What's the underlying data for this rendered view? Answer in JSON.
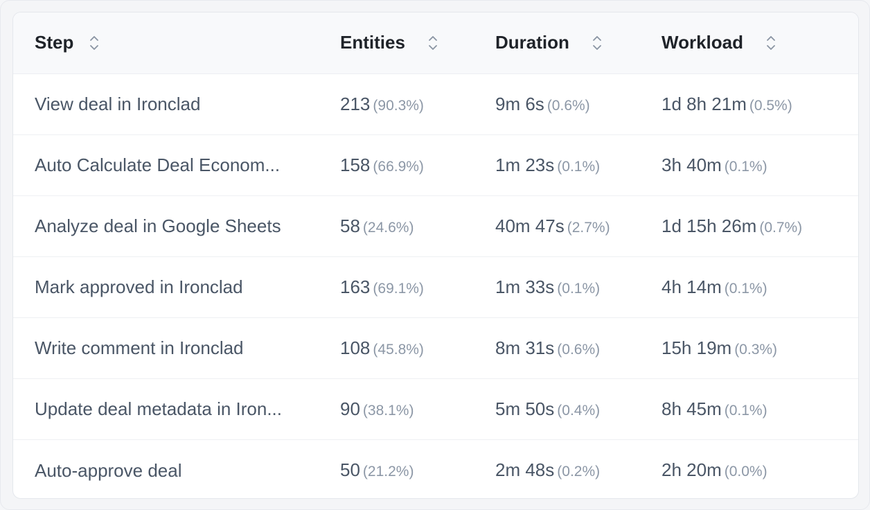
{
  "table": {
    "columns": [
      {
        "label": "Step"
      },
      {
        "label": "Entities"
      },
      {
        "label": "Duration"
      },
      {
        "label": "Workload"
      }
    ],
    "rows": [
      {
        "step": "View deal in Ironclad",
        "entities": "213",
        "entities_pct": "(90.3%)",
        "duration": "9m 6s",
        "duration_pct": "(0.6%)",
        "workload": "1d 8h 21m",
        "workload_pct": "(0.5%)"
      },
      {
        "step": "Auto Calculate Deal Econom...",
        "entities": "158",
        "entities_pct": "(66.9%)",
        "duration": "1m 23s",
        "duration_pct": "(0.1%)",
        "workload": "3h 40m",
        "workload_pct": "(0.1%)"
      },
      {
        "step": "Analyze deal in Google Sheets",
        "entities": "58",
        "entities_pct": "(24.6%)",
        "duration": "40m 47s",
        "duration_pct": "(2.7%)",
        "workload": "1d 15h 26m",
        "workload_pct": "(0.7%)"
      },
      {
        "step": "Mark approved in Ironclad",
        "entities": "163",
        "entities_pct": "(69.1%)",
        "duration": "1m 33s",
        "duration_pct": "(0.1%)",
        "workload": "4h 14m",
        "workload_pct": "(0.1%)"
      },
      {
        "step": "Write comment in Ironclad",
        "entities": "108",
        "entities_pct": "(45.8%)",
        "duration": "8m 31s",
        "duration_pct": "(0.6%)",
        "workload": "15h 19m",
        "workload_pct": "(0.3%)"
      },
      {
        "step": "Update deal metadata in Iron...",
        "entities": "90",
        "entities_pct": "(38.1%)",
        "duration": "5m 50s",
        "duration_pct": "(0.4%)",
        "workload": "8h 45m",
        "workload_pct": "(0.1%)"
      },
      {
        "step": "Auto-approve deal",
        "entities": "50",
        "entities_pct": "(21.2%)",
        "duration": "2m 48s",
        "duration_pct": "(0.2%)",
        "workload": "2h 20m",
        "workload_pct": "(0.0%)"
      }
    ]
  },
  "icons": {
    "sort": "sort-updown-icon"
  },
  "colors": {
    "header_bg": "#f8f9fb",
    "text": "#4a5666",
    "muted": "#8c97a6",
    "heading": "#1f2329"
  }
}
